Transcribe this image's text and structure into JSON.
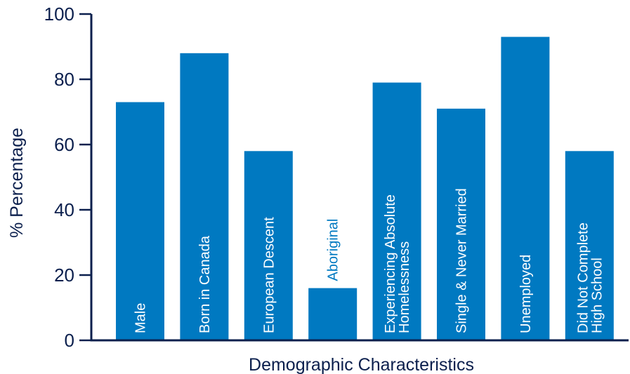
{
  "chart_data": {
    "type": "bar",
    "xlabel": "Demographic Characteristics",
    "ylabel": "% Percentage",
    "ylim": [
      0,
      100
    ],
    "yticks": [
      0,
      20,
      40,
      60,
      80,
      100
    ],
    "grid": false,
    "legend": "none",
    "categories": [
      [
        "Male"
      ],
      [
        "Born in Canada"
      ],
      [
        "European Descent"
      ],
      [
        "Aboriginal"
      ],
      [
        "Experiencing Absolute",
        "Homelessness"
      ],
      [
        "Single & Never Married"
      ],
      [
        "Unemployed"
      ],
      [
        "Did Not Complete",
        "High School"
      ]
    ],
    "values": [
      73,
      88,
      58,
      16,
      79,
      71,
      93,
      58
    ],
    "colors": {
      "bar": "#0079c1",
      "axis": "#0b1f4d",
      "label_inside": "#ffffff",
      "label_outside": "#0079c1"
    }
  }
}
